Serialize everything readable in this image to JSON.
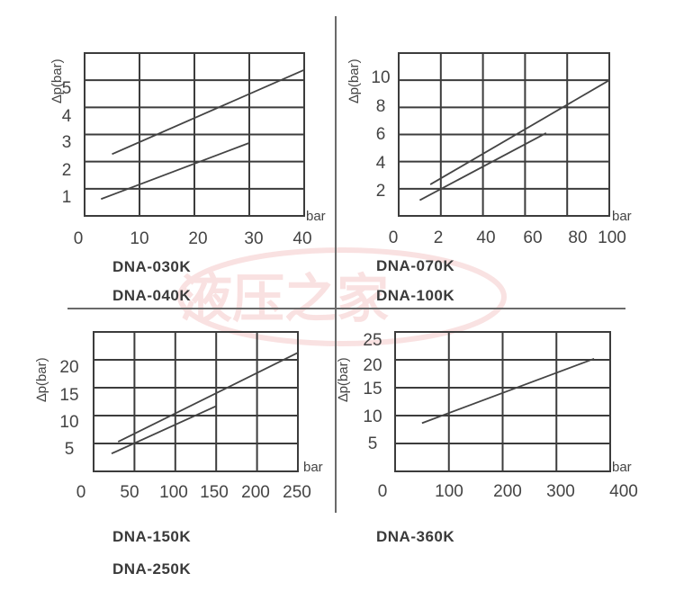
{
  "chart_data": [
    {
      "type": "line",
      "ylabel": "∆p(bar)",
      "xlabel": "bar",
      "xticks": [
        "0",
        "10",
        "20",
        "30",
        "40"
      ],
      "yticks": [
        "1",
        "2",
        "3",
        "4",
        "5"
      ],
      "xlim": [
        0,
        40
      ],
      "ylim": [
        0,
        5.8
      ],
      "models": [
        "DNA-030K",
        "DNA-040K"
      ],
      "series": [
        {
          "name": "upper",
          "x": [
            5,
            40
          ],
          "y": [
            2.2,
            5.2
          ]
        },
        {
          "name": "lower",
          "x": [
            3,
            30
          ],
          "y": [
            0.6,
            2.6
          ]
        }
      ]
    },
    {
      "type": "line",
      "ylabel": "∆p(bar)",
      "xlabel": "bar",
      "xticks": [
        "0",
        "2",
        "40",
        "60",
        "80",
        "100"
      ],
      "yticks": [
        "2",
        "4",
        "6",
        "8",
        "10"
      ],
      "xlim": [
        0,
        100
      ],
      "ylim": [
        0,
        11.4
      ],
      "models": [
        "DNA-070K",
        "DNA-100K"
      ],
      "series": [
        {
          "name": "upper",
          "x": [
            15,
            100
          ],
          "y": [
            2.2,
            9.5
          ]
        },
        {
          "name": "lower",
          "x": [
            10,
            70
          ],
          "y": [
            1.1,
            5.8
          ]
        }
      ]
    },
    {
      "type": "line",
      "ylabel": "∆p(bar)",
      "xlabel": "bar",
      "xticks": [
        "0",
        "50",
        "100",
        "150",
        "200",
        "250"
      ],
      "yticks": [
        "5",
        "10",
        "15",
        "20"
      ],
      "xlim": [
        0,
        250
      ],
      "ylim": [
        0,
        23.5
      ],
      "models": [
        "DNA-150K",
        "DNA-250K"
      ],
      "series": [
        {
          "name": "upper",
          "x": [
            30,
            250
          ],
          "y": [
            5,
            20
          ]
        },
        {
          "name": "lower",
          "x": [
            22,
            150
          ],
          "y": [
            3,
            11
          ]
        }
      ]
    },
    {
      "type": "line",
      "ylabel": "∆p(bar)",
      "xlabel": "bar",
      "xticks": [
        "0",
        "100",
        "200",
        "300",
        "400"
      ],
      "yticks": [
        "5",
        "10",
        "15",
        "20",
        "25"
      ],
      "xlim": [
        0,
        400
      ],
      "ylim": [
        0,
        26
      ],
      "models": [
        "DNA-360K"
      ],
      "series": [
        {
          "name": "line",
          "x": [
            50,
            370
          ],
          "y": [
            9,
            21
          ]
        }
      ]
    }
  ],
  "watermark": {
    "text": "液压之家",
    "color": "#e9a0a0"
  },
  "colors": {
    "ink": "#3c3c3c",
    "background": "#ffffff"
  }
}
